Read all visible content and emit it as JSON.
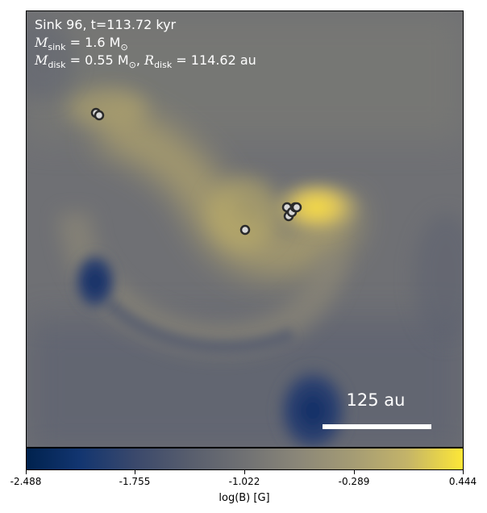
{
  "annotation": {
    "line1": "Sink 96, t=113.72 kyr",
    "sink_mass_symbol": "M",
    "sink_mass_sub": "sink",
    "sink_mass_value": " = 1.6 M",
    "sink_mass_unit_sub": "⊙",
    "disk_mass_symbol": "M",
    "disk_mass_sub": "disk",
    "disk_mass_value": " = 0.55 M",
    "disk_mass_unit_sub": "⊙",
    "disk_radius_symbol": "R",
    "disk_radius_sub": "disk",
    "disk_radius_value": " = 114.62 au"
  },
  "scalebar": {
    "label": "125 au"
  },
  "colorbar": {
    "label": "log(B) [G]",
    "ticks": [
      "-2.488",
      "-1.755",
      "-1.022",
      "-0.289",
      "0.444"
    ]
  },
  "colors": {
    "low": "#00224e",
    "mid": "#707173",
    "high": "#fde737"
  }
}
